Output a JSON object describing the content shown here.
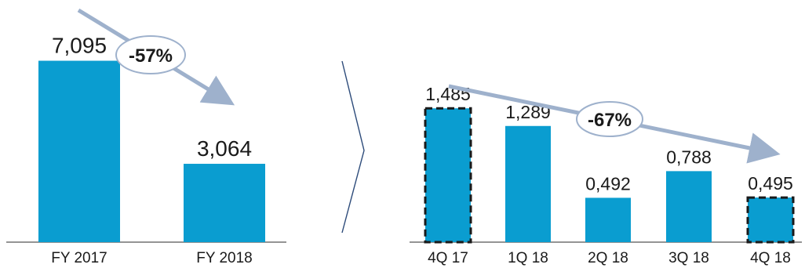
{
  "chart_data": [
    {
      "type": "bar",
      "categories": [
        "FY 2017",
        "FY 2018"
      ],
      "values": [
        7095,
        3064
      ],
      "data_labels": [
        "7,095",
        "3,064"
      ],
      "ylim": [
        0,
        8000
      ],
      "annotation": {
        "label": "-57%",
        "from": "FY 2017",
        "to": "FY 2018"
      },
      "highlighted": []
    },
    {
      "type": "bar",
      "categories": [
        "4Q 17",
        "1Q 18",
        "2Q 18",
        "3Q 18",
        "4Q 18"
      ],
      "values": [
        1.485,
        1.289,
        0.492,
        0.788,
        0.495
      ],
      "data_labels": [
        "1,485",
        "1,289",
        "0,492",
        "0,788",
        "0,495"
      ],
      "ylim": [
        0,
        2
      ],
      "annotation": {
        "label": "-67%",
        "from": "4Q 17",
        "to": "4Q 18"
      },
      "highlighted": [
        "4Q 17",
        "4Q 18"
      ]
    }
  ],
  "colors": {
    "bar": "#0a9dd0",
    "arrow": "#9eb1cc",
    "bubble_border": "#9eb1cc",
    "axis": "#555555",
    "highlight_border": "#1a1a1a",
    "chevron": "#2d4b7a"
  }
}
